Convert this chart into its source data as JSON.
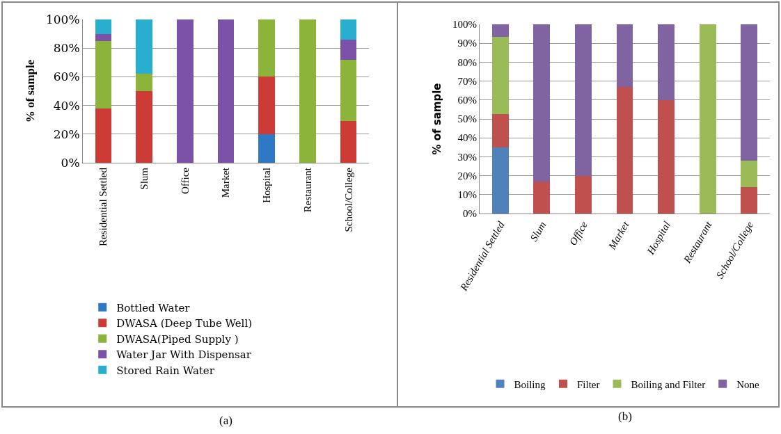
{
  "chart_data": [
    {
      "type": "bar",
      "stacked": true,
      "ylabel": "% of sample",
      "categories": [
        "Residential Settled",
        "Slum",
        "Office",
        "Market",
        "Hospital",
        "Restaurant",
        "School/College"
      ],
      "series": [
        {
          "name": "Bottled Water",
          "color": "#2f78c4",
          "values": [
            0,
            0,
            0,
            0,
            20,
            0,
            0
          ]
        },
        {
          "name": "DWASA (Deep Tube Well)",
          "color": "#cc3b35",
          "values": [
            38,
            50,
            0,
            0,
            40,
            0,
            29
          ]
        },
        {
          "name": "DWASA(Piped Supply )",
          "color": "#8db43a",
          "values": [
            47,
            12,
            0,
            0,
            40,
            100,
            43
          ]
        },
        {
          "name": "Water Jar With Dispensar",
          "color": "#7b52a8",
          "values": [
            5,
            0,
            100,
            100,
            0,
            0,
            14
          ]
        },
        {
          "name": "Stored Rain Water",
          "color": "#2aaed0",
          "values": [
            10,
            38,
            0,
            0,
            0,
            0,
            14
          ]
        }
      ],
      "ylim": [
        0,
        100
      ],
      "yticks": [
        {
          "value": 0,
          "label": "0%"
        },
        {
          "value": 20,
          "label": "20%"
        },
        {
          "value": 40,
          "label": "40%"
        },
        {
          "value": 60,
          "label": "60%"
        },
        {
          "value": 80,
          "label": "80%"
        },
        {
          "value": 100,
          "label": "100%"
        }
      ],
      "grid": "y",
      "legend": "bottom",
      "annotations": [
        "(a)"
      ]
    },
    {
      "type": "bar",
      "stacked": true,
      "ylabel": "% of sample",
      "categories": [
        "Residential Settled",
        "Slum",
        "Office",
        "Market",
        "Hospital",
        "Restaurant",
        "School/College"
      ],
      "series": [
        {
          "name": "Boiling",
          "color": "#4f81bd",
          "values": [
            35,
            0,
            0,
            0,
            0,
            0,
            0
          ]
        },
        {
          "name": "Filter",
          "color": "#c0504d",
          "values": [
            17.5,
            17,
            20,
            67,
            60,
            0,
            14
          ]
        },
        {
          "name": "Boiling and Filter",
          "color": "#9bbb59",
          "values": [
            41,
            0,
            0,
            0,
            0,
            100,
            14
          ]
        },
        {
          "name": "None",
          "color": "#8064a2",
          "values": [
            6.5,
            83,
            80,
            33,
            40,
            0,
            72
          ]
        }
      ],
      "ylim": [
        0,
        100
      ],
      "yticks": [
        {
          "value": 0,
          "label": "0%"
        },
        {
          "value": 10,
          "label": "10%"
        },
        {
          "value": 20,
          "label": "20%"
        },
        {
          "value": 30,
          "label": "30%"
        },
        {
          "value": 40,
          "label": "40%"
        },
        {
          "value": 50,
          "label": "50%"
        },
        {
          "value": 60,
          "label": "60%"
        },
        {
          "value": 70,
          "label": "70%"
        },
        {
          "value": 80,
          "label": "80%"
        },
        {
          "value": 90,
          "label": "90%"
        },
        {
          "value": 100,
          "label": "100%"
        }
      ],
      "grid": "y",
      "legend": "bottom",
      "annotations": [
        "(b)"
      ]
    }
  ]
}
